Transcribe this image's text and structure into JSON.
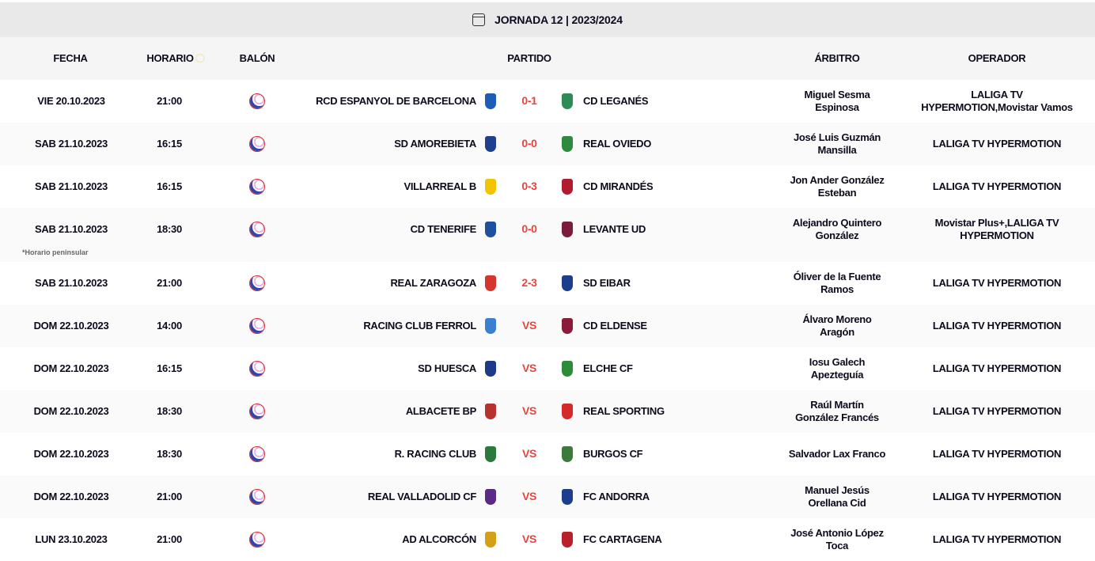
{
  "title": "JORNADA 12 | 2023/2024",
  "columns": {
    "fecha": "FECHA",
    "horario": "HORARIO",
    "balon": "BALÓN",
    "partido": "PARTIDO",
    "arbitro": "ÁRBITRO",
    "operador": "OPERADOR"
  },
  "footnote": "*Horario peninsular",
  "score_color": "#e8443a",
  "matches": [
    {
      "fecha": "VIE 20.10.2023",
      "horario": "21:00",
      "home": "RCD ESPANYOL DE BARCELONA",
      "home_color": "#1c5db5",
      "score": "0-1",
      "away": "CD LEGANÉS",
      "away_color": "#2e8b57",
      "arbitro": [
        "Miguel Sesma",
        "Espinosa"
      ],
      "operador": [
        "LALIGA TV",
        "HYPERMOTION,Movistar Vamos"
      ]
    },
    {
      "fecha": "SAB 21.10.2023",
      "horario": "16:15",
      "home": "SD AMOREBIETA",
      "home_color": "#1f3f8f",
      "score": "0-0",
      "away": "REAL OVIEDO",
      "away_color": "#2d8a3e",
      "arbitro": [
        "José Luis Guzmán",
        "Mansilla"
      ],
      "operador": [
        "LALIGA TV HYPERMOTION"
      ]
    },
    {
      "fecha": "SAB 21.10.2023",
      "horario": "16:15",
      "home": "VILLARREAL B",
      "home_color": "#f2c500",
      "score": "0-3",
      "away": "CD MIRANDÉS",
      "away_color": "#b01c2e",
      "arbitro": [
        "Jon Ander González",
        "Esteban"
      ],
      "operador": [
        "LALIGA TV HYPERMOTION"
      ]
    },
    {
      "fecha": "SAB 21.10.2023",
      "horario": "18:30",
      "home": "CD TENERIFE",
      "home_color": "#1e4fa0",
      "score": "0-0",
      "away": "LEVANTE UD",
      "away_color": "#7a1d3d",
      "arbitro": [
        "Alejandro Quintero",
        "González"
      ],
      "operador": [
        "Movistar Plus+,LALIGA TV",
        "HYPERMOTION"
      ],
      "note": true
    },
    {
      "fecha": "SAB 21.10.2023",
      "horario": "21:00",
      "home": "REAL ZARAGOZA",
      "home_color": "#d4352c",
      "score": "2-3",
      "away": "SD EIBAR",
      "away_color": "#1d3e8c",
      "arbitro": [
        "Óliver de la Fuente",
        "Ramos"
      ],
      "operador": [
        "LALIGA TV HYPERMOTION"
      ]
    },
    {
      "fecha": "DOM 22.10.2023",
      "horario": "14:00",
      "home": "RACING CLUB FERROL",
      "home_color": "#3a7fd0",
      "score": "VS",
      "away": "CD ELDENSE",
      "away_color": "#8a1b3b",
      "arbitro": [
        "Álvaro Moreno",
        "Aragón"
      ],
      "operador": [
        "LALIGA TV HYPERMOTION"
      ]
    },
    {
      "fecha": "DOM 22.10.2023",
      "horario": "16:15",
      "home": "SD HUESCA",
      "home_color": "#1d3a8a",
      "score": "VS",
      "away": "ELCHE CF",
      "away_color": "#2e8b3a",
      "arbitro": [
        "Iosu Galech",
        "Apezteguía"
      ],
      "operador": [
        "LALIGA TV HYPERMOTION"
      ]
    },
    {
      "fecha": "DOM 22.10.2023",
      "horario": "18:30",
      "home": "ALBACETE BP",
      "home_color": "#b8312f",
      "score": "VS",
      "away": "REAL SPORTING",
      "away_color": "#d42a2a",
      "arbitro": [
        "Raúl Martín",
        "González Francés"
      ],
      "operador": [
        "LALIGA TV HYPERMOTION"
      ]
    },
    {
      "fecha": "DOM 22.10.2023",
      "horario": "18:30",
      "home": "R. RACING CLUB",
      "home_color": "#2b7a3b",
      "score": "VS",
      "away": "BURGOS CF",
      "away_color": "#3c7a3c",
      "arbitro": [
        "Salvador Lax Franco"
      ],
      "operador": [
        "LALIGA TV HYPERMOTION"
      ]
    },
    {
      "fecha": "DOM 22.10.2023",
      "horario": "21:00",
      "home": "REAL VALLADOLID CF",
      "home_color": "#5b2a86",
      "score": "VS",
      "away": "FC ANDORRA",
      "away_color": "#1d3e8c",
      "arbitro": [
        "Manuel Jesús",
        "Orellana Cid"
      ],
      "operador": [
        "LALIGA TV HYPERMOTION"
      ]
    },
    {
      "fecha": "LUN 23.10.2023",
      "horario": "21:00",
      "home": "AD ALCORCÓN",
      "home_color": "#d4a017",
      "score": "VS",
      "away": "FC CARTAGENA",
      "away_color": "#b8202b",
      "arbitro": [
        "José Antonio López",
        "Toca"
      ],
      "operador": [
        "LALIGA TV HYPERMOTION"
      ]
    }
  ]
}
